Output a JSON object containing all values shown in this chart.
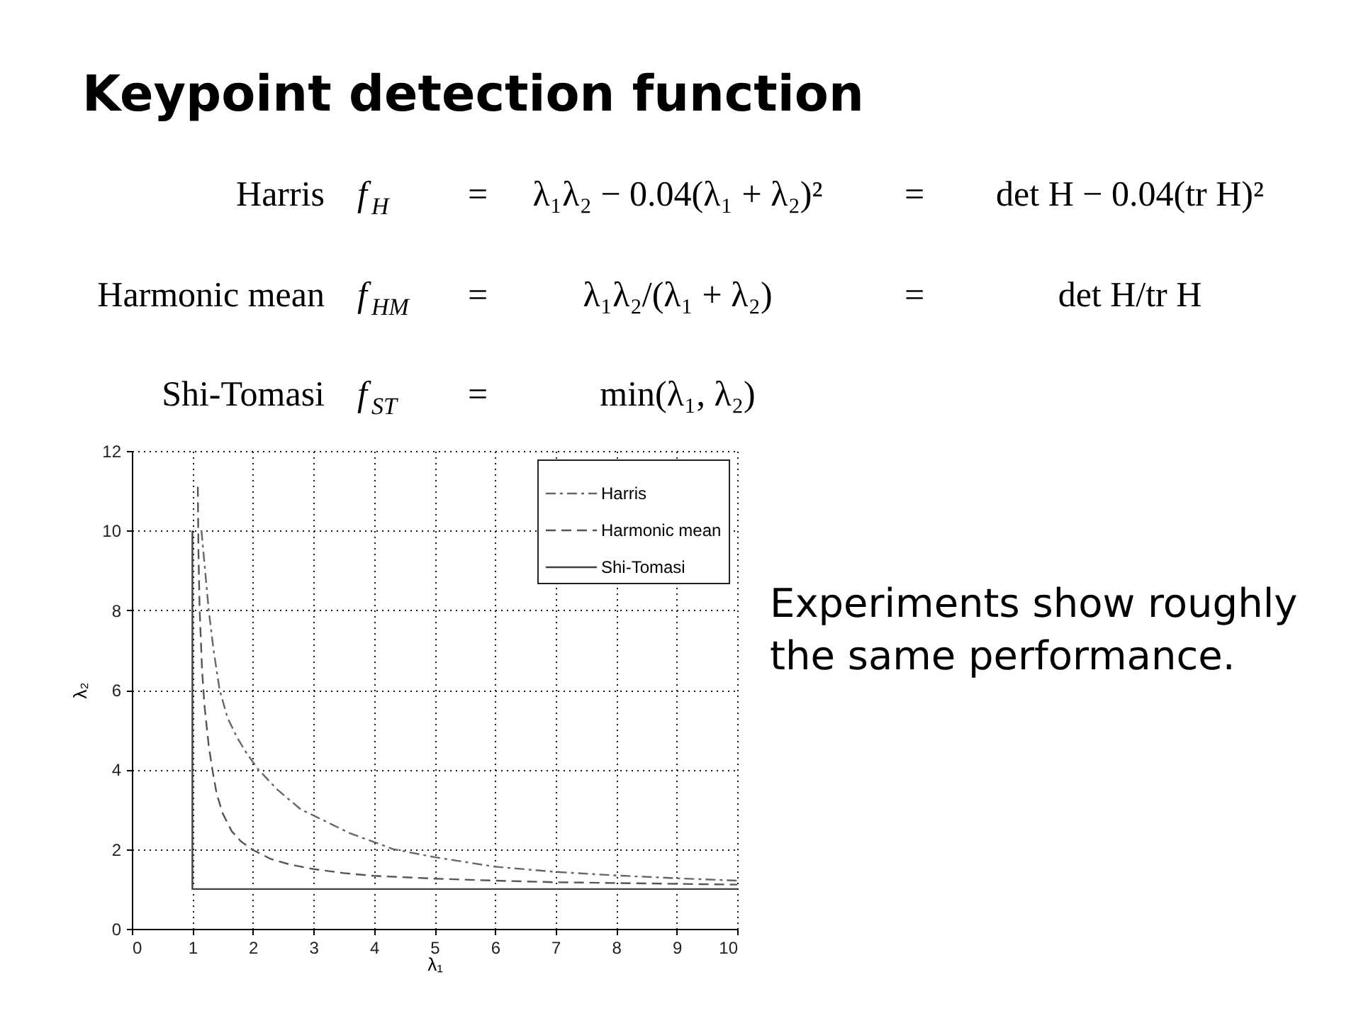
{
  "chart_data": {
    "type": "line",
    "title": "Keypoint detection function",
    "xlabel": "λ₁",
    "ylabel": "λ₂",
    "xlim": [
      0,
      10
    ],
    "ylim": [
      0,
      12
    ],
    "xticks": [
      0,
      1,
      2,
      3,
      4,
      5,
      6,
      7,
      8,
      9,
      10
    ],
    "yticks": [
      0,
      2,
      4,
      6,
      8,
      10,
      12
    ],
    "grid": true,
    "legend": "top right",
    "series": [
      {
        "name": "Harris",
        "color": "#666666",
        "line_style": "dashdot",
        "x": [
          1.15,
          1.21,
          1.27,
          1.35,
          1.45,
          1.58,
          1.74,
          1.9,
          2.09,
          2.4,
          2.79,
          3.2,
          3.6,
          4,
          4.32,
          5,
          6,
          7,
          8,
          9,
          10
        ],
        "values": [
          10,
          9,
          8,
          7,
          6,
          5.3,
          4.8,
          4.4,
          4,
          3.5,
          3,
          2.7,
          2.4,
          2.18,
          2,
          1.8,
          1.56,
          1.43,
          1.34,
          1.27,
          1.21
        ]
      },
      {
        "name": "Harmonic mean",
        "color": "#555555",
        "line_style": "dashed",
        "x": [
          1.09,
          1.1,
          1.12,
          1.16,
          1.2,
          1.27,
          1.33,
          1.4,
          1.5,
          1.65,
          1.8,
          2,
          2.3,
          2.6,
          3,
          3.5,
          4,
          5,
          6,
          7,
          8,
          9,
          10
        ],
        "values": [
          11.1,
          9.5,
          8,
          6.5,
          5.6,
          4.6,
          4,
          3.4,
          2.9,
          2.45,
          2.2,
          1.98,
          1.75,
          1.62,
          1.5,
          1.4,
          1.33,
          1.26,
          1.21,
          1.17,
          1.15,
          1.13,
          1.11
        ]
      },
      {
        "name": "Shi-Tomasi",
        "color": "#404040",
        "line_style": "solid",
        "x": [
          1,
          1,
          10
        ],
        "values": [
          10,
          1,
          1
        ]
      }
    ],
    "annotations": [
      "Harris",
      "f$_{H}$",
      "=",
      "λ₁λ₂ − 0.04(λ₁ + λ₂)²",
      "=",
      "det H − 0.04(tr H)²",
      "Harmonic mean",
      "f$_{HM}$",
      "=",
      "λ₁λ₂/(λ₁ + λ₂)",
      "=",
      "det H/tr H",
      "Shi-Tomasi",
      "f$_{ST}$",
      "=",
      "min(λ₁, λ₂)",
      "Experiments show roughly the same performance."
    ]
  }
}
